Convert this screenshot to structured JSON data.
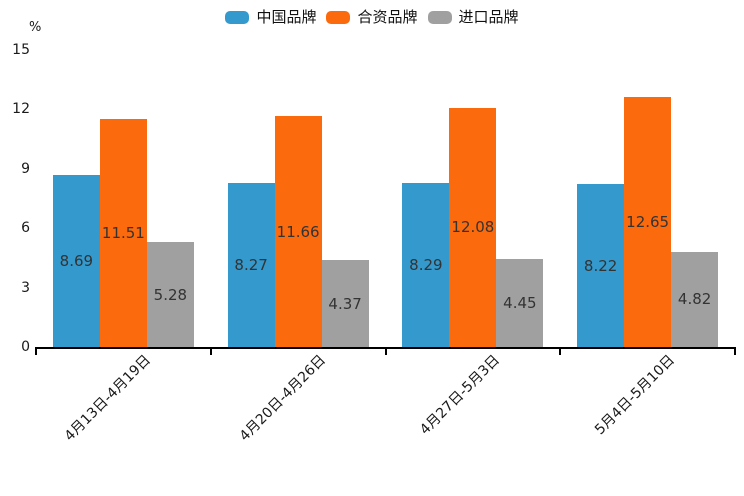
{
  "chart_data": {
    "type": "bar",
    "title": "",
    "ylabel": "%",
    "xlabel": "",
    "legend_position": "top",
    "grid": false,
    "value_labels": "centered inside bars, two decimals",
    "x_label_rotation_deg": -45,
    "categories": [
      "4月13日-4月19日",
      "4月20日-4月26日",
      "4月27日-5月3日",
      "5月4日-5月10日"
    ],
    "series": [
      {
        "name": "中国品牌",
        "color": "#3499CC",
        "values": [
          8.69,
          8.27,
          8.29,
          8.22
        ]
      },
      {
        "name": "合资品牌",
        "color": "#FB6A0D",
        "values": [
          11.51,
          11.66,
          12.08,
          12.65
        ]
      },
      {
        "name": "进口品牌",
        "color": "#A0A0A0",
        "values": [
          5.28,
          4.37,
          4.45,
          4.82
        ]
      }
    ],
    "y_axis": {
      "min": 0,
      "max": 15,
      "step": 3,
      "ticks": [
        0,
        3,
        6,
        9,
        12,
        15
      ]
    },
    "colors": {
      "axis": "#000000",
      "tick_text": "#1a1a1a",
      "bar_value_text": "#333333",
      "background": "#ffffff"
    }
  }
}
